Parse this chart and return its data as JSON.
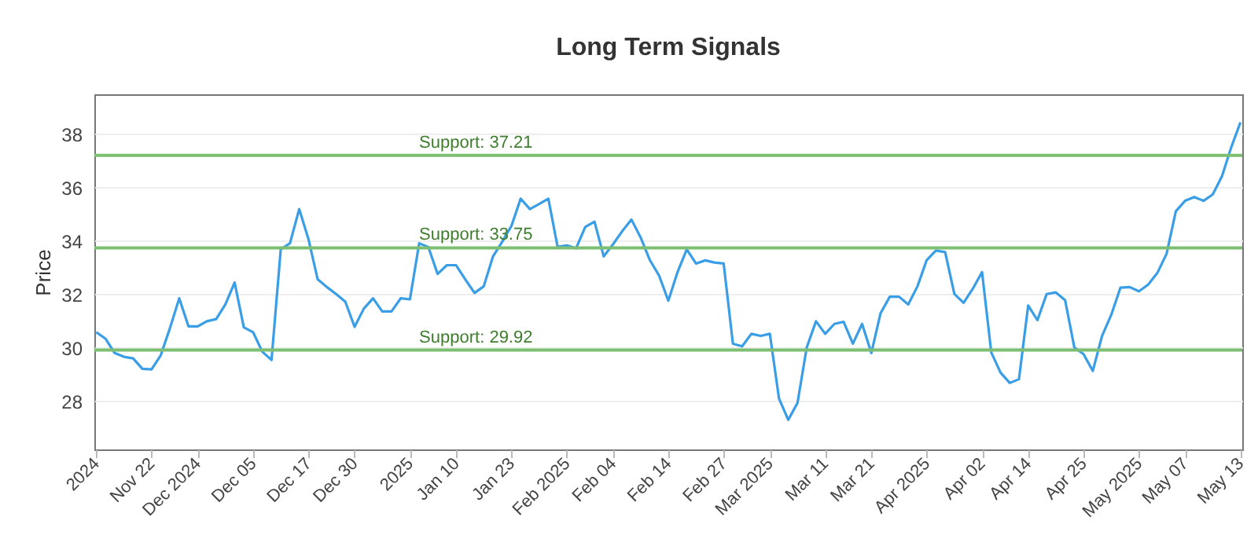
{
  "chart_data": {
    "type": "line",
    "title": "Long Term Signals",
    "ylabel": "Price",
    "categories": [
      "2024",
      null,
      null,
      null,
      null,
      null,
      "Nov 22",
      null,
      null,
      null,
      null,
      "Dec 2024",
      null,
      null,
      null,
      null,
      null,
      "Dec 05",
      null,
      null,
      null,
      null,
      null,
      "Dec 17",
      null,
      null,
      null,
      null,
      "Dec 30",
      null,
      null,
      null,
      null,
      null,
      "2025",
      null,
      null,
      null,
      null,
      "Jan 10",
      null,
      null,
      null,
      null,
      null,
      "Jan 23",
      null,
      null,
      null,
      null,
      null,
      "Feb 2025",
      null,
      null,
      null,
      null,
      "Feb 04",
      null,
      null,
      null,
      null,
      null,
      "Feb 14",
      null,
      null,
      null,
      null,
      null,
      "Feb 27",
      null,
      null,
      null,
      null,
      "Mar 2025",
      null,
      null,
      null,
      null,
      null,
      "Mar 11",
      null,
      null,
      null,
      null,
      "Mar 21",
      null,
      null,
      null,
      null,
      null,
      "Apr 2025",
      null,
      null,
      null,
      null,
      null,
      "Apr 02",
      null,
      null,
      null,
      null,
      "Apr 14",
      null,
      null,
      null,
      null,
      null,
      "Apr 25",
      null,
      null,
      null,
      null,
      null,
      "May 2025",
      null,
      null,
      null,
      null,
      "May 07",
      null,
      null,
      null,
      null,
      null,
      "May 13"
    ],
    "series": [
      {
        "color": "#3a9ee6",
        "values": [
          30.59,
          30.35,
          29.81,
          29.67,
          29.61,
          29.22,
          29.2,
          29.73,
          30.75,
          31.86,
          30.81,
          30.81,
          31.0,
          31.08,
          31.63,
          32.45,
          30.77,
          30.59,
          29.86,
          29.55,
          33.69,
          33.92,
          35.2,
          34.08,
          32.57,
          32.28,
          32.02,
          31.73,
          30.79,
          31.47,
          31.86,
          31.37,
          31.37,
          31.86,
          31.82,
          33.92,
          33.78,
          32.77,
          33.1,
          33.1,
          32.57,
          32.06,
          32.31,
          33.43,
          33.98,
          34.57,
          35.59,
          35.2,
          35.39,
          35.59,
          33.79,
          33.84,
          33.73,
          34.53,
          34.73,
          33.43,
          33.88,
          34.37,
          34.81,
          34.14,
          33.29,
          32.71,
          31.77,
          32.84,
          33.69,
          33.16,
          33.28,
          33.2,
          33.16,
          30.16,
          30.06,
          30.53,
          30.45,
          30.53,
          28.1,
          27.31,
          27.94,
          30.02,
          31.0,
          30.53,
          30.9,
          30.98,
          30.16,
          30.9,
          29.81,
          31.3,
          31.92,
          31.92,
          31.63,
          32.31,
          33.29,
          33.65,
          33.59,
          32.02,
          31.69,
          32.22,
          32.84,
          29.83,
          29.08,
          28.69,
          28.83,
          31.59,
          31.04,
          32.02,
          32.08,
          31.79,
          30.02,
          29.77,
          29.14,
          30.45,
          31.24,
          32.26,
          32.28,
          32.12,
          32.37,
          32.81,
          33.53,
          35.12,
          35.51,
          35.65,
          35.51,
          35.75,
          36.43,
          37.51,
          38.45
        ]
      }
    ],
    "ylim": [
      26.2,
      39.5
    ],
    "yticks": [
      28,
      30,
      32,
      34,
      36,
      38
    ],
    "grid": "y",
    "ref_lines": [
      {
        "axis": "y",
        "value": 37.21,
        "label": "Support: 37.21",
        "color": "#7cbf72"
      },
      {
        "axis": "y",
        "value": 33.75,
        "label": "Support: 33.75",
        "color": "#7cbf72"
      },
      {
        "axis": "y",
        "value": 29.92,
        "label": "Support: 29.92",
        "color": "#7cbf72"
      }
    ]
  }
}
